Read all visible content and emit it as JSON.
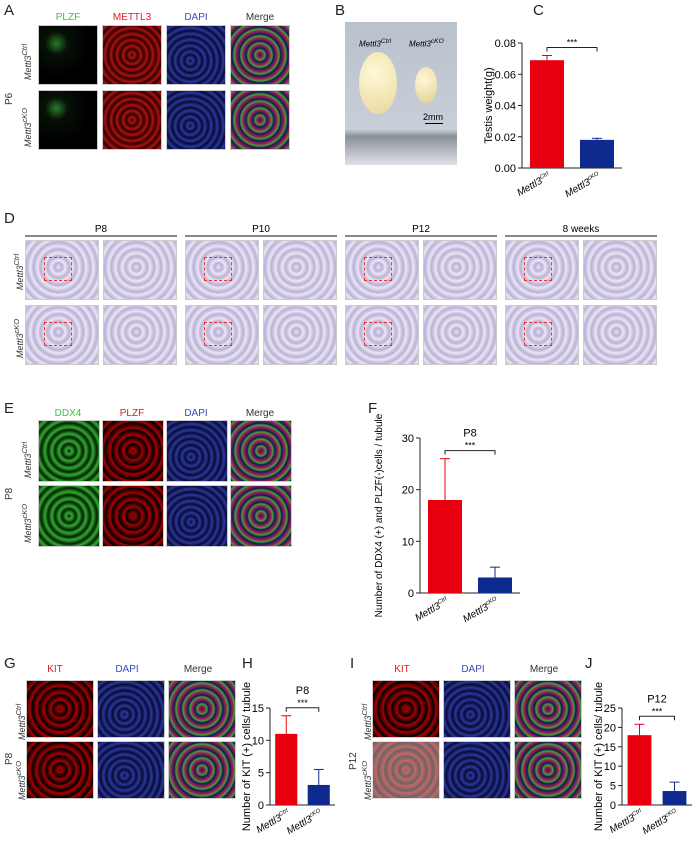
{
  "panel_labels": {
    "A": "A",
    "B": "B",
    "C": "C",
    "D": "D",
    "E": "E",
    "F": "F",
    "G": "G",
    "H": "H",
    "I": "I",
    "J": "J"
  },
  "colors": {
    "ctrl": "#e8000f",
    "cko": "#0f2a8f",
    "green": "#3fbf3f",
    "red": "#e0191f",
    "blue": "#2f4fbf"
  },
  "genotypes": {
    "ctrl": "Mettl3",
    "ctrl_sup": "Ctrl",
    "cko": "Mettl3",
    "cko_sup": "cKO"
  },
  "panelA": {
    "stage": "P6",
    "channels": [
      "PLZF",
      "METTL3",
      "DAPI",
      "Merge"
    ]
  },
  "panelB": {
    "ctrl_label": "Mettl3",
    "ctrl_sup": "Ctrl",
    "cko_label": "Mettl3",
    "cko_sup": "cKO",
    "scale": "2mm"
  },
  "panelD": {
    "stages": [
      "P8",
      "P10",
      "P12",
      "8 weeks"
    ]
  },
  "panelE": {
    "stage": "P8",
    "channels": [
      "DDX4",
      "PLZF",
      "DAPI",
      "Merge"
    ]
  },
  "panelG": {
    "stage": "P8",
    "channels": [
      "KIT",
      "DAPI",
      "Merge"
    ]
  },
  "panelI": {
    "stage": "P12",
    "channels": [
      "KIT",
      "DAPI",
      "Merge"
    ]
  },
  "chart_data": [
    {
      "id": "C",
      "type": "bar",
      "title": "",
      "ylabel": "Testis weight(g)",
      "ylim": [
        0,
        0.08
      ],
      "yticks": [
        "0.00",
        "0.02",
        "0.04",
        "0.06",
        "0.08"
      ],
      "tickvals": [
        0,
        0.02,
        0.04,
        0.06,
        0.08
      ],
      "categories": [
        "Mettl3 Ctrl",
        "Mettl3 cKO"
      ],
      "values": [
        0.069,
        0.018
      ],
      "errors": [
        0.003,
        0.001
      ],
      "significance": "***"
    },
    {
      "id": "F",
      "type": "bar",
      "title": "P8",
      "ylabel": "Number of DDX4 (+) and PLZF(-)cells / tubule",
      "ylim": [
        0,
        30
      ],
      "yticks": [
        "0",
        "10",
        "20",
        "30"
      ],
      "tickvals": [
        0,
        10,
        20,
        30
      ],
      "categories": [
        "Mettl3 Ctrl",
        "Mettl3 cKO"
      ],
      "values": [
        18,
        3
      ],
      "errors": [
        8,
        2
      ],
      "significance": "***"
    },
    {
      "id": "H",
      "type": "bar",
      "title": "P8",
      "ylabel": "Number of KIT (+) cells/ tubule",
      "ylim": [
        0,
        15
      ],
      "yticks": [
        "0",
        "5",
        "10",
        "15"
      ],
      "tickvals": [
        0,
        5,
        10,
        15
      ],
      "categories": [
        "Mettl3 Ctrl",
        "Mettl3 cKO"
      ],
      "values": [
        11,
        3.1
      ],
      "errors": [
        2.8,
        2.4
      ],
      "significance": "***"
    },
    {
      "id": "J",
      "type": "bar",
      "title": "P12",
      "ylabel": "Number of KIT (+) cells/ tubule",
      "ylim": [
        0,
        25
      ],
      "yticks": [
        "0",
        "5",
        "10",
        "15",
        "20",
        "25"
      ],
      "tickvals": [
        0,
        5,
        10,
        15,
        20,
        25
      ],
      "categories": [
        "Mettl3 Ctrl",
        "Mettl3 cKO"
      ],
      "values": [
        18,
        3.6
      ],
      "errors": [
        2.8,
        2.3
      ],
      "significance": "***"
    }
  ]
}
